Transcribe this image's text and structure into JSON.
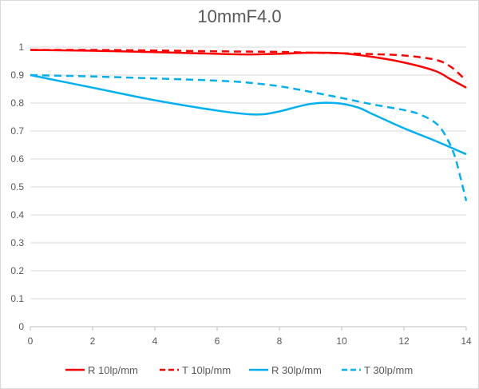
{
  "chart_data": {
    "type": "line",
    "title": "10mmF4.0",
    "xlabel": "",
    "ylabel": "",
    "xlim": [
      0,
      14
    ],
    "ylim": [
      0,
      1
    ],
    "grid": "horizontal",
    "legend_position": "bottom",
    "x_ticks": [
      "0",
      "2",
      "4",
      "6",
      "8",
      "10",
      "12",
      "14"
    ],
    "y_ticks": [
      "0",
      "0.1",
      "0.2",
      "0.3",
      "0.4",
      "0.5",
      "0.6",
      "0.7",
      "0.8",
      "0.9",
      "1"
    ],
    "series": [
      {
        "name": "R 10lp/mm",
        "color": "#ff0000",
        "dash": "solid",
        "x": [
          0,
          2,
          4,
          6,
          7,
          8,
          9,
          10,
          11,
          12,
          13,
          13.5,
          14
        ],
        "y": [
          0.99,
          0.987,
          0.982,
          0.976,
          0.974,
          0.976,
          0.98,
          0.978,
          0.965,
          0.945,
          0.915,
          0.885,
          0.855
        ]
      },
      {
        "name": "T 10lp/mm",
        "color": "#ff0000",
        "dash": "dashed",
        "x": [
          0,
          2,
          4,
          6,
          8,
          9,
          10,
          11,
          12,
          13,
          13.5,
          14
        ],
        "y": [
          0.99,
          0.99,
          0.988,
          0.985,
          0.983,
          0.98,
          0.978,
          0.975,
          0.97,
          0.955,
          0.93,
          0.88
        ]
      },
      {
        "name": "R 30lp/mm",
        "color": "#00b0f0",
        "dash": "solid",
        "x": [
          0,
          2,
          4,
          6,
          7,
          7.5,
          8,
          9,
          9.8,
          10.5,
          11,
          12,
          13,
          14
        ],
        "y": [
          0.9,
          0.855,
          0.81,
          0.773,
          0.76,
          0.76,
          0.77,
          0.797,
          0.8,
          0.785,
          0.76,
          0.71,
          0.665,
          0.617
        ]
      },
      {
        "name": "T 30lp/mm",
        "color": "#00b0f0",
        "dash": "dashed",
        "x": [
          0,
          2,
          4,
          6,
          7,
          8,
          9,
          10,
          11,
          12,
          12.5,
          13,
          13.3,
          13.6,
          13.8,
          14
        ],
        "y": [
          0.9,
          0.895,
          0.888,
          0.88,
          0.873,
          0.86,
          0.84,
          0.818,
          0.795,
          0.775,
          0.76,
          0.73,
          0.69,
          0.62,
          0.54,
          0.45
        ]
      }
    ]
  }
}
